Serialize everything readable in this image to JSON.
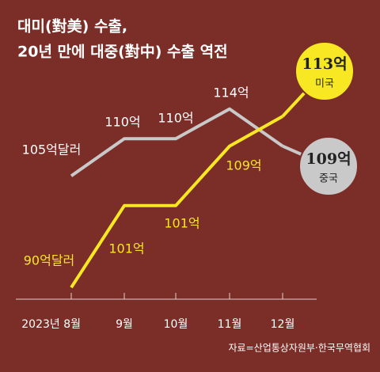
{
  "chart_data": {
    "type": "line",
    "title": [
      "대미(對美) 수출,",
      "20년 만에 대중(對中) 수출 역전"
    ],
    "categories": [
      "2023년 8월",
      "9월",
      "10월",
      "11월",
      "12월"
    ],
    "series": [
      {
        "name": "중국",
        "color": "#c9c9c9",
        "values": [
          105,
          110,
          110,
          114,
          109
        ],
        "value_labels": [
          "105억달러",
          "110억",
          "110억",
          "114억",
          "109억"
        ]
      },
      {
        "name": "미국",
        "color": "#f8e823",
        "values": [
          90,
          101,
          101,
          109,
          113
        ],
        "value_labels": [
          "90억달러",
          "101억",
          "101억",
          "109억",
          "113억"
        ]
      }
    ],
    "ylim": [
      88,
      118
    ],
    "source": "자료=산업통상자원부·한국무역협회"
  }
}
